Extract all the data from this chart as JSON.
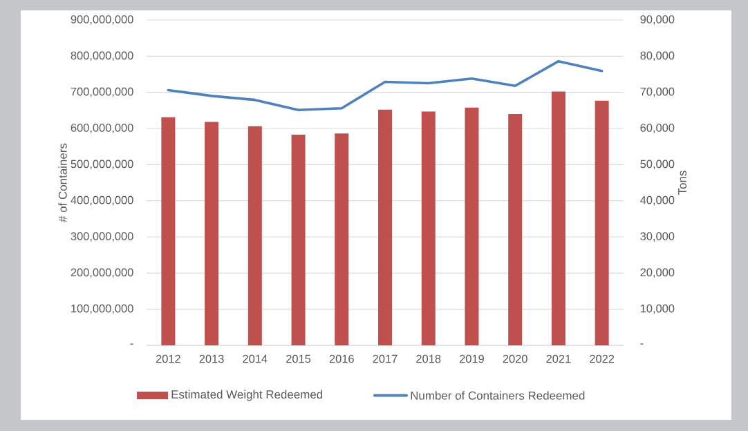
{
  "chart_data": {
    "type": "bar",
    "categories": [
      "2012",
      "2013",
      "2014",
      "2015",
      "2016",
      "2017",
      "2018",
      "2019",
      "2020",
      "2021",
      "2022"
    ],
    "ylabel": "# of Containers",
    "y2label": "Tons",
    "ylim": [
      0,
      900000000
    ],
    "yticks": [
      {
        "value": 0,
        "label": "-"
      },
      {
        "value": 100000000,
        "label": "100,000,000"
      },
      {
        "value": 200000000,
        "label": "200,000,000"
      },
      {
        "value": 300000000,
        "label": "300,000,000"
      },
      {
        "value": 400000000,
        "label": "400,000,000"
      },
      {
        "value": 500000000,
        "label": "500,000,000"
      },
      {
        "value": 600000000,
        "label": "600,000,000"
      },
      {
        "value": 700000000,
        "label": "700,000,000"
      },
      {
        "value": 800000000,
        "label": "800,000,000"
      },
      {
        "value": 900000000,
        "label": "900,000,000"
      }
    ],
    "y2lim": [
      0,
      90000
    ],
    "y2ticks": [
      {
        "value": 0,
        "label": "-"
      },
      {
        "value": 10000,
        "label": "10,000"
      },
      {
        "value": 20000,
        "label": "20,000"
      },
      {
        "value": 30000,
        "label": "30,000"
      },
      {
        "value": 40000,
        "label": "40,000"
      },
      {
        "value": 50000,
        "label": "50,000"
      },
      {
        "value": 60000,
        "label": "60,000"
      },
      {
        "value": 70000,
        "label": "70,000"
      },
      {
        "value": 80000,
        "label": "80,000"
      },
      {
        "value": 90000,
        "label": "90,000"
      }
    ],
    "grid": "y",
    "legend": "bottom",
    "series": [
      {
        "name": "Estimated Weight Redeemed",
        "axis": "y2",
        "color": "#c0504d",
        "values": [
          63100,
          61800,
          60600,
          58300,
          58600,
          65200,
          64700,
          65800,
          64000,
          70200,
          67700
        ]
      },
      {
        "name": "Number of Containers Redeemed",
        "type": "line",
        "color": "#4f81bd",
        "values": [
          706000000,
          690000000,
          679000000,
          651000000,
          656000000,
          729000000,
          725000000,
          738000000,
          718000000,
          786000000,
          759000000
        ]
      }
    ]
  }
}
